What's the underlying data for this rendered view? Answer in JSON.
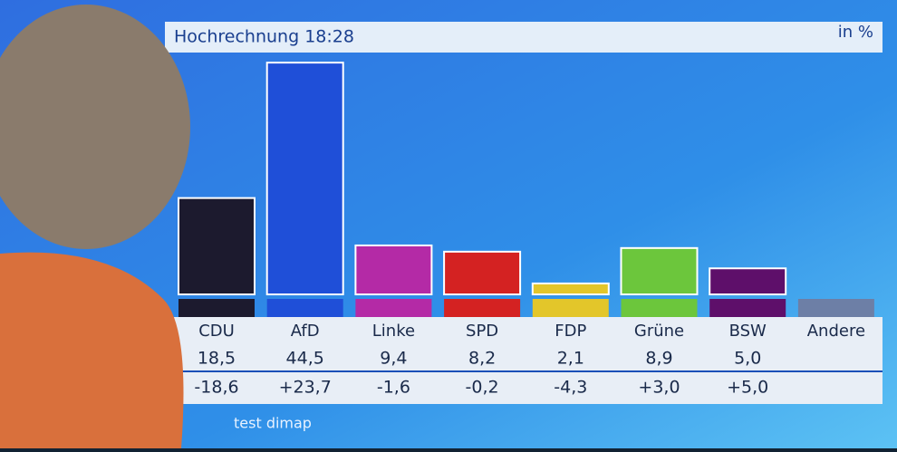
{
  "chart_data": {
    "type": "bar",
    "title": "Hochrechnung 18:28",
    "unit": "in %",
    "source": "test dimap",
    "categories": [
      "CDU",
      "AfD",
      "Linke",
      "SPD",
      "FDP",
      "Grüne",
      "BSW",
      "Andere"
    ],
    "values": [
      18.5,
      44.5,
      9.4,
      8.2,
      2.1,
      8.9,
      5.0,
      null
    ],
    "value_labels": [
      "18,5",
      "44,5",
      "9,4",
      "8,2",
      "2,1",
      "8,9",
      "5,0",
      null
    ],
    "changes": [
      -18.6,
      23.7,
      -1.6,
      -0.2,
      -4.3,
      3.0,
      5.0,
      null
    ],
    "change_labels": [
      "-18,6",
      "+23,7",
      "-1,6",
      "-0,2",
      "-4,3",
      "+3,0",
      "+5,0",
      null
    ],
    "colors": [
      "#1c1a2e",
      "#1f4fd8",
      "#b42aa6",
      "#d42222",
      "#e3c62a",
      "#6cc63c",
      "#5e0f6a",
      "#6d7fa6"
    ]
  }
}
